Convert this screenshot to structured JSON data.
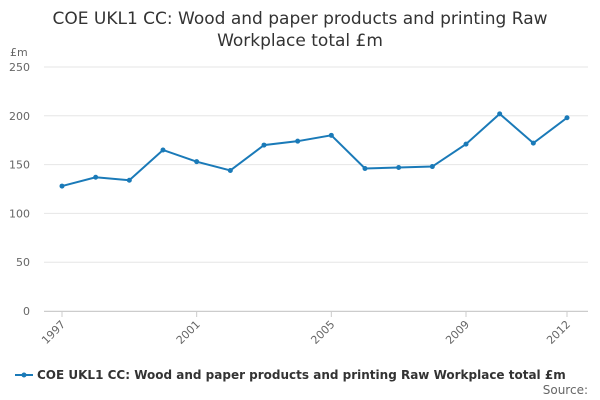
{
  "chart_data": {
    "type": "line",
    "title": "COE UKL1 CC: Wood and paper products and printing Raw Workplace total £m",
    "y_label": "£m",
    "source": "Source:",
    "x": [
      1997,
      1998,
      1999,
      2000,
      2001,
      2002,
      2003,
      2004,
      2005,
      2006,
      2007,
      2008,
      2009,
      2010,
      2011,
      2012
    ],
    "series": [
      {
        "name": "COE UKL1 CC: Wood and paper products and printing Raw Workplace total £m",
        "color": "#1a7ab8",
        "values": [
          128,
          137,
          134,
          165,
          153,
          144,
          170,
          174,
          180,
          146,
          147,
          148,
          171,
          202,
          172,
          198
        ]
      }
    ],
    "xlim": [
      1997,
      2012
    ],
    "xticks": [
      1997,
      2001,
      2005,
      2009,
      2012
    ],
    "ylim": [
      0,
      250
    ],
    "yticks": [
      0,
      50,
      100,
      150,
      200,
      250
    ],
    "grid": true
  }
}
